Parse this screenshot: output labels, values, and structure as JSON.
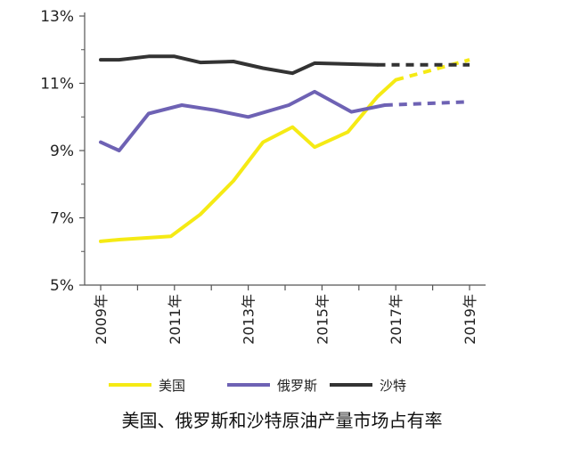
{
  "chart_data": {
    "type": "line",
    "title": "美国、俄罗斯和沙特原油产量市场占有率",
    "x": [
      2009,
      2010,
      2011,
      2012,
      2013,
      2014,
      2015,
      2016,
      2017,
      2018,
      2019
    ],
    "x_tick_labels": [
      "2009年",
      "2011年",
      "2013年",
      "2015年",
      "2017年",
      "2019年"
    ],
    "x_tick_values": [
      2009,
      2011,
      2013,
      2015,
      2017,
      2019
    ],
    "xlim": [
      2009,
      2019
    ],
    "y_tick_labels": [
      "5%",
      "7%",
      "9%",
      "11%",
      "13%"
    ],
    "y_tick_values": [
      5,
      7,
      9,
      11,
      13
    ],
    "ylim": [
      5,
      13
    ],
    "grid": false,
    "legend_position": "bottom",
    "forecast_from": 2018,
    "series": [
      {
        "name": "美国",
        "color": "#f5ea14",
        "points": [
          [
            2009,
            6.3
          ],
          [
            2009.5,
            6.35
          ],
          [
            2010.9,
            6.45
          ],
          [
            2011.7,
            7.1
          ],
          [
            2012.6,
            8.1
          ],
          [
            2013.4,
            9.25
          ],
          [
            2014.2,
            9.7
          ],
          [
            2014.8,
            9.1
          ],
          [
            2015.7,
            9.55
          ],
          [
            2016.5,
            10.6
          ],
          [
            2017.0,
            11.1
          ],
          [
            2019,
            11.7
          ]
        ]
      },
      {
        "name": "俄罗斯",
        "color": "#6e62b4",
        "points": [
          [
            2009,
            9.25
          ],
          [
            2009.5,
            9.0
          ],
          [
            2010.3,
            10.1
          ],
          [
            2011.2,
            10.35
          ],
          [
            2012.1,
            10.2
          ],
          [
            2013.0,
            10.0
          ],
          [
            2014.1,
            10.35
          ],
          [
            2014.8,
            10.75
          ],
          [
            2015.8,
            10.15
          ],
          [
            2016.7,
            10.35
          ],
          [
            2019,
            10.45
          ]
        ]
      },
      {
        "name": "沙特",
        "color": "#333333",
        "points": [
          [
            2009,
            11.7
          ],
          [
            2009.5,
            11.7
          ],
          [
            2010.3,
            11.8
          ],
          [
            2011.0,
            11.8
          ],
          [
            2011.7,
            11.62
          ],
          [
            2012.6,
            11.65
          ],
          [
            2013.4,
            11.45
          ],
          [
            2014.2,
            11.3
          ],
          [
            2014.8,
            11.6
          ],
          [
            2016.5,
            11.55
          ],
          [
            2019,
            11.55
          ]
        ]
      }
    ]
  }
}
